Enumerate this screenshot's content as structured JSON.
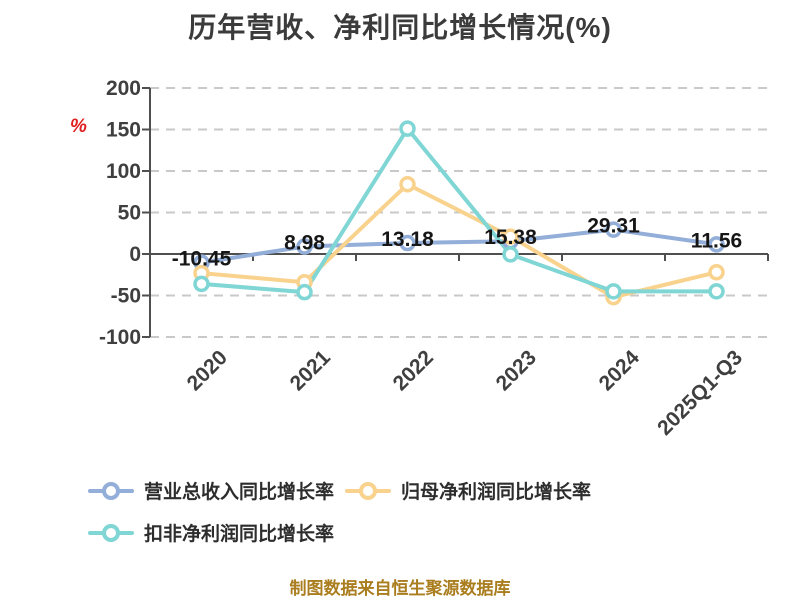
{
  "chart_data": {
    "type": "line",
    "title": "历年营收、净利同比增长情况(%)",
    "unit_label": "%",
    "unit_color": "#e02020",
    "caption": "制图数据来自恒生聚源数据库",
    "caption_color": "#aa7d1e",
    "categories": [
      "2020",
      "2021",
      "2022",
      "2023",
      "2024",
      "2025Q1-Q3"
    ],
    "yticks": [
      200,
      150,
      100,
      50,
      0,
      -50,
      -100
    ],
    "ylim": [
      -100,
      200
    ],
    "grid": "dashed",
    "legend_position": "bottom-left",
    "series": [
      {
        "name": "营业总收入同比增长率",
        "color": "#93aed8",
        "values": [
          -10.45,
          8.98,
          13.18,
          15.38,
          29.31,
          11.56
        ],
        "data_labels": [
          "-10.45",
          "8.98",
          "13.18",
          "15.38",
          "29.31",
          "11.56"
        ]
      },
      {
        "name": "归母净利润同比增长率",
        "color": "#f9d28d",
        "values": [
          -23,
          -34,
          84,
          21,
          -52,
          -22
        ]
      },
      {
        "name": "扣非净利润同比增长率",
        "color": "#7fd6d4",
        "values": [
          -36,
          -46,
          151,
          -0.5,
          -45,
          -45
        ]
      }
    ]
  }
}
